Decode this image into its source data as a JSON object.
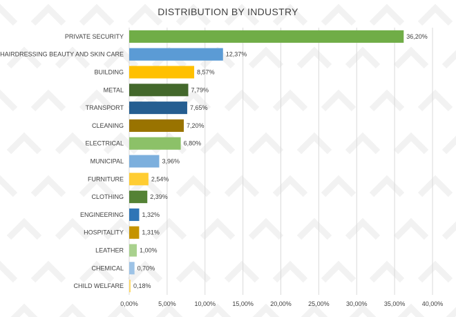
{
  "chart_data": {
    "type": "bar",
    "orientation": "horizontal",
    "title": "DISTRIBUTION BY INDUSTRY",
    "xlabel": "",
    "ylabel": "",
    "xlim": [
      0,
      40
    ],
    "x_ticks": [
      "0,00%",
      "5,00%",
      "10,00%",
      "15,00%",
      "20,00%",
      "25,00%",
      "30,00%",
      "35,00%",
      "40,00%"
    ],
    "grid": true,
    "legend": "none",
    "categories": [
      "PRIVATE SECURITY",
      "HAIRDRESSING BEAUTY AND SKIN CARE",
      "BUILDING",
      "METAL",
      "TRANSPORT",
      "CLEANING",
      "ELECTRICAL",
      "MUNICIPAL",
      "FURNITURE",
      "CLOTHING",
      "ENGINEERING",
      "HOSPITALITY",
      "LEATHER",
      "CHEMICAL",
      "CHILD WELFARE"
    ],
    "values": [
      36.2,
      12.37,
      8.57,
      7.79,
      7.65,
      7.2,
      6.8,
      3.96,
      2.54,
      2.39,
      1.32,
      1.31,
      1.0,
      0.7,
      0.18
    ],
    "value_labels": [
      "36,20%",
      "12,37%",
      "8,57%",
      "7,79%",
      "7,65%",
      "7,20%",
      "6,80%",
      "3,96%",
      "2,54%",
      "2,39%",
      "1,32%",
      "1,31%",
      "1,00%",
      "0,70%",
      "0,18%"
    ],
    "colors": [
      "#70ad47",
      "#5b9bd5",
      "#ffc000",
      "#43682b",
      "#255e91",
      "#997300",
      "#8cc168",
      "#7cafdd",
      "#ffcd33",
      "#548235",
      "#2e75b6",
      "#c59400",
      "#a9d18e",
      "#9dc3e6",
      "#ffd966"
    ]
  }
}
